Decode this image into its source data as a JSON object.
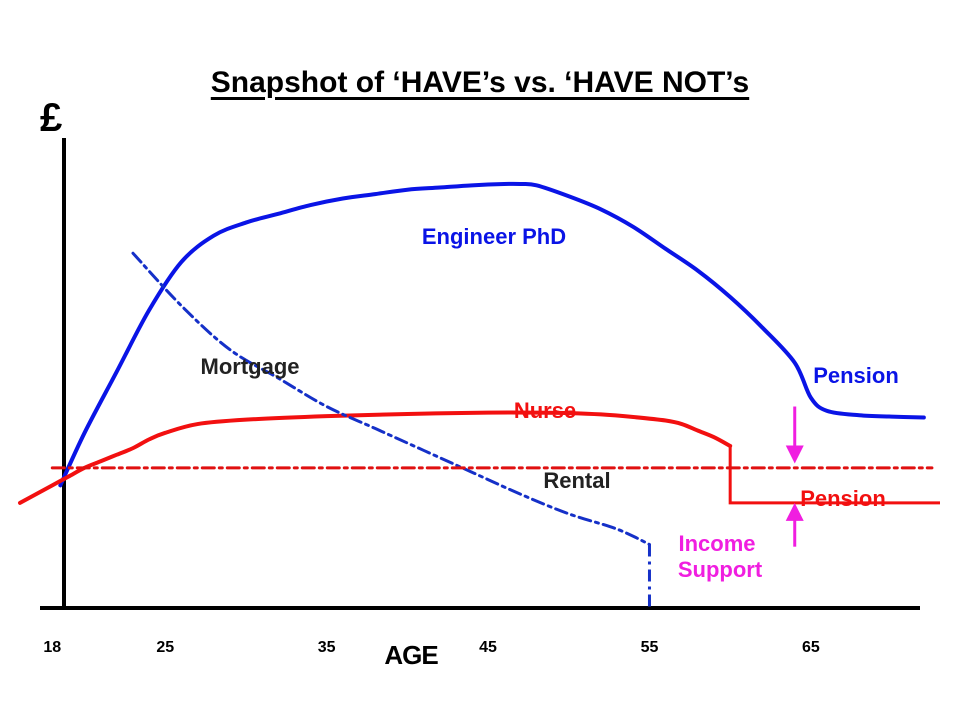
{
  "title": "Snapshot of ‘HAVE’s vs. ‘HAVE NOT’s",
  "y_symbol": "£",
  "chart_data": {
    "type": "line",
    "title": "Snapshot of ‘HAVE’s vs. ‘HAVE NOT’s",
    "xlabel": "AGE",
    "ylabel": "£",
    "x_ticks": [
      18,
      25,
      35,
      45,
      55,
      65
    ],
    "xlim": [
      16,
      73
    ],
    "ylim": [
      0,
      100
    ],
    "grid": false,
    "series": [
      {
        "name": "Engineer PhD",
        "color": "#0a14e6",
        "style": "solid",
        "x": [
          18.5,
          20,
          22,
          24,
          26,
          28,
          30,
          32,
          34,
          36,
          38,
          40,
          42,
          44,
          46,
          47,
          48,
          50,
          52,
          54,
          56,
          58,
          60,
          62,
          64,
          65,
          66,
          68,
          70,
          72
        ],
        "y": [
          28,
          40,
          54,
          68,
          79,
          85,
          88,
          90,
          92,
          93.5,
          94.5,
          95.5,
          96,
          96.5,
          96.8,
          96.8,
          96.5,
          94,
          91,
          87,
          82,
          77,
          71,
          64,
          56,
          48,
          45,
          44,
          43.7,
          43.5
        ]
      },
      {
        "name": "Nurse",
        "color": "#f21010",
        "style": "solid",
        "x": [
          16,
          17,
          18,
          19,
          20,
          21,
          22,
          23,
          24,
          25,
          27,
          30,
          35,
          40,
          45,
          48,
          50,
          52,
          54,
          56,
          57,
          58,
          59,
          60
        ],
        "y": [
          24,
          26,
          28,
          30,
          32,
          33.5,
          35,
          36.5,
          38.5,
          40,
          42,
          43,
          43.8,
          44.3,
          44.6,
          44.6,
          44.5,
          44.2,
          43.6,
          42.8,
          42,
          40.5,
          39,
          37
        ],
        "pension": {
          "label": "Pension",
          "x": [
            60,
            73
          ],
          "y": 24
        }
      },
      {
        "name": "Mortgage",
        "color": "#1530c8",
        "style": "dash-dot",
        "x": [
          23,
          26,
          29,
          32,
          35,
          38,
          41,
          44,
          47,
          50,
          53,
          55
        ],
        "y": [
          81,
          69,
          59,
          52.5,
          46,
          41,
          36,
          31,
          26,
          21.5,
          18,
          14.5
        ],
        "drop_to": {
          "x": 55,
          "y": 0
        }
      },
      {
        "name": "Rental",
        "color": "#e01010",
        "style": "dash-dot",
        "x": [
          18,
          72.5
        ],
        "y": [
          32,
          32
        ]
      }
    ],
    "annotations": [
      {
        "text": "Engineer PhD",
        "color": "#0a14e6"
      },
      {
        "text": "Pension",
        "color": "#0a14e6"
      },
      {
        "text": "Mortgage",
        "color": "#222222"
      },
      {
        "text": "Nurse",
        "color": "#f21010"
      },
      {
        "text": "Rental",
        "color": "#222222"
      },
      {
        "text": "Pension",
        "color": "#f21010"
      },
      {
        "text": "Income",
        "color": "#f01ee0"
      },
      {
        "text": "Support",
        "color": "#f01ee0"
      }
    ],
    "arrows": [
      {
        "color": "#f01ee0",
        "x": 64,
        "from_y": 46,
        "to_y": 33
      },
      {
        "color": "#f01ee0",
        "x": 64,
        "from_y": 14,
        "to_y": 24
      }
    ]
  }
}
